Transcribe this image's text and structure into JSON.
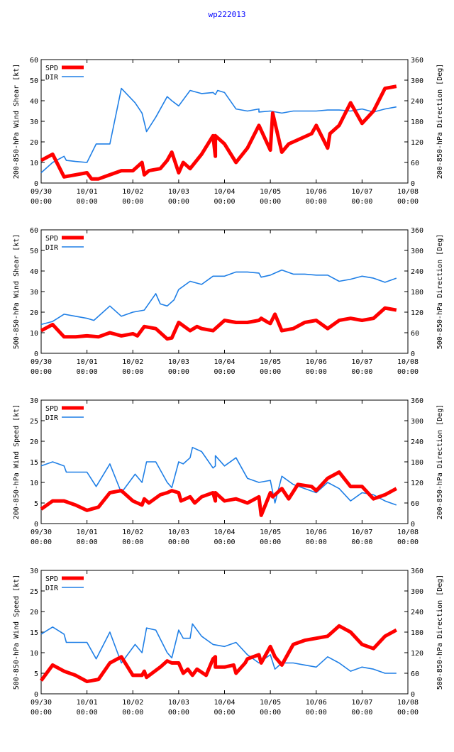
{
  "title": "wp222013",
  "colors": {
    "spd": "#ff0000",
    "dir": "#1f7fe6",
    "title": "#0000ff"
  },
  "x_ticks": [
    {
      "day": 0,
      "date": "09/30",
      "time": "00:00"
    },
    {
      "day": 1,
      "date": "10/01",
      "time": "00:00"
    },
    {
      "day": 2,
      "date": "10/02",
      "time": "00:00"
    },
    {
      "day": 3,
      "date": "10/03",
      "time": "00:00"
    },
    {
      "day": 4,
      "date": "10/04",
      "time": "00:00"
    },
    {
      "day": 5,
      "date": "10/05",
      "time": "00:00"
    },
    {
      "day": 6,
      "date": "10/06",
      "time": "00:00"
    },
    {
      "day": 7,
      "date": "10/07",
      "time": "00:00"
    },
    {
      "day": 8,
      "date": "10/08",
      "time": "00:00"
    }
  ],
  "chart_data": [
    {
      "type": "line",
      "ylabel": "200-850-hPa Wind Shear [kt]",
      "y2label": "200-850-hPa Direction [Deg]",
      "ylim": [
        0,
        60
      ],
      "yticks": [
        0,
        10,
        20,
        30,
        40,
        50,
        60
      ],
      "y2lim": [
        0,
        360
      ],
      "y2ticks": [
        0,
        60,
        120,
        180,
        240,
        300,
        360
      ],
      "xlim": [
        0,
        8
      ],
      "legend": [
        "SPD",
        "DIR"
      ],
      "series": [
        {
          "name": "SPD",
          "axis": "left",
          "x": [
            0,
            0.25,
            0.5,
            0.75,
            1.0,
            1.1,
            1.25,
            1.5,
            1.75,
            2.0,
            2.2,
            2.25,
            2.35,
            2.6,
            2.75,
            2.85,
            3.0,
            3.1,
            3.25,
            3.5,
            3.75,
            3.8,
            3.8,
            4.0,
            4.25,
            4.5,
            4.75,
            5.0,
            5.05,
            5.25,
            5.4,
            5.6,
            5.9,
            6.0,
            6.25,
            6.3,
            6.5,
            6.75,
            7.0,
            7.25,
            7.5,
            7.75
          ],
          "values": [
            11,
            14,
            3,
            4,
            5,
            2,
            2,
            4,
            6,
            6,
            10,
            4,
            6,
            7,
            11,
            15,
            5,
            10,
            7,
            14,
            23,
            13,
            23,
            19,
            10,
            17,
            28,
            16,
            34,
            15,
            19,
            21,
            24,
            28,
            17,
            24,
            28,
            39,
            29,
            35,
            46,
            47
          ]
        },
        {
          "name": "DIR",
          "axis": "right",
          "x": [
            0,
            0.25,
            0.5,
            0.55,
            0.75,
            1.0,
            1.2,
            1.5,
            1.75,
            2.05,
            2.2,
            2.3,
            2.5,
            2.75,
            2.85,
            3.0,
            3.25,
            3.5,
            3.75,
            3.8,
            3.85,
            4.0,
            4.25,
            4.5,
            4.75,
            4.75,
            5.0,
            5.25,
            5.5,
            5.75,
            6.0,
            6.25,
            6.5,
            6.75,
            7.0,
            7.25,
            7.5,
            7.75
          ],
          "values": [
            30,
            60,
            78,
            66,
            63,
            60,
            114,
            114,
            276,
            234,
            204,
            150,
            192,
            252,
            240,
            225,
            270,
            261,
            264,
            258,
            270,
            264,
            216,
            210,
            216,
            207,
            210,
            204,
            210,
            210,
            210,
            213,
            213,
            210,
            216,
            207,
            216,
            222
          ]
        }
      ]
    },
    {
      "type": "line",
      "ylabel": "500-850-hPa Wind Shear [kt]",
      "y2label": "500-850-hPa Direction [Deg]",
      "ylim": [
        0,
        60
      ],
      "yticks": [
        0,
        10,
        20,
        30,
        40,
        50,
        60
      ],
      "y2lim": [
        0,
        360
      ],
      "y2ticks": [
        0,
        60,
        120,
        180,
        240,
        300,
        360
      ],
      "xlim": [
        0,
        8
      ],
      "legend": [
        "SPD",
        "DIR"
      ],
      "series": [
        {
          "name": "SPD",
          "axis": "left",
          "x": [
            0,
            0.25,
            0.5,
            0.75,
            1.0,
            1.25,
            1.5,
            1.75,
            2.0,
            2.1,
            2.25,
            2.5,
            2.75,
            2.85,
            3.0,
            3.25,
            3.4,
            3.5,
            3.75,
            4.0,
            4.25,
            4.5,
            4.75,
            4.8,
            4.95,
            5.0,
            5.1,
            5.25,
            5.5,
            5.75,
            6.0,
            6.25,
            6.5,
            6.75,
            7.0,
            7.25,
            7.5,
            7.75
          ],
          "values": [
            11,
            14,
            8,
            8,
            8.5,
            8,
            10,
            8.5,
            9.5,
            8.5,
            13,
            12,
            7,
            7.5,
            15,
            11,
            13,
            12,
            11,
            16,
            15,
            15,
            16,
            17,
            15,
            14.5,
            19,
            11,
            12,
            15,
            16,
            12,
            16,
            17,
            16,
            17,
            22,
            21
          ]
        },
        {
          "name": "DIR",
          "axis": "right",
          "x": [
            0,
            0.25,
            0.5,
            0.75,
            1.0,
            1.15,
            1.5,
            1.75,
            2.0,
            2.25,
            2.5,
            2.6,
            2.75,
            2.9,
            3.0,
            3.25,
            3.5,
            3.75,
            4.0,
            4.25,
            4.5,
            4.75,
            4.8,
            5.0,
            5.1,
            5.25,
            5.5,
            5.75,
            6.0,
            6.25,
            6.5,
            6.75,
            7.0,
            7.25,
            7.5,
            7.75
          ],
          "values": [
            84,
            93,
            114,
            108,
            102,
            96,
            138,
            108,
            120,
            126,
            174,
            144,
            138,
            156,
            186,
            210,
            201,
            225,
            225,
            237,
            237,
            234,
            222,
            228,
            234,
            243,
            231,
            231,
            228,
            228,
            210,
            216,
            225,
            219,
            207,
            219
          ]
        }
      ]
    },
    {
      "type": "line",
      "ylabel": "200-850-hPa Wind Speed [kt]",
      "y2label": "200-850-hPa Direction [Deg]",
      "ylim": [
        0,
        30
      ],
      "yticks": [
        0,
        5,
        10,
        15,
        20,
        25,
        30
      ],
      "y2lim": [
        0,
        360
      ],
      "y2ticks": [
        0,
        60,
        120,
        180,
        240,
        300,
        360
      ],
      "xlim": [
        0,
        8
      ],
      "legend": [
        "SPD",
        "DIR"
      ],
      "series": [
        {
          "name": "SPD",
          "axis": "left",
          "x": [
            0,
            0.25,
            0.5,
            0.75,
            1.0,
            1.25,
            1.5,
            1.75,
            2.0,
            2.2,
            2.25,
            2.35,
            2.6,
            2.75,
            2.85,
            3.0,
            3.05,
            3.25,
            3.35,
            3.5,
            3.75,
            3.8,
            3.8,
            4.0,
            4.25,
            4.5,
            4.75,
            4.8,
            5.0,
            5.05,
            5.25,
            5.4,
            5.6,
            5.9,
            6.0,
            6.25,
            6.5,
            6.75,
            7.0,
            7.25,
            7.5,
            7.75
          ],
          "values": [
            3.5,
            5.5,
            5.5,
            4.5,
            3.2,
            4,
            7.5,
            8,
            5.5,
            4.5,
            6,
            5,
            7,
            7.5,
            8,
            7.5,
            5.5,
            6.5,
            5,
            6.5,
            7.5,
            5.5,
            7.5,
            5.5,
            6,
            5,
            6.5,
            2,
            7.5,
            6.5,
            8.5,
            6,
            9.5,
            9,
            8,
            11,
            12.5,
            9,
            9,
            6,
            7,
            8.5
          ]
        },
        {
          "name": "DIR",
          "axis": "right",
          "x": [
            0,
            0.25,
            0.5,
            0.55,
            0.75,
            1.0,
            1.2,
            1.5,
            1.75,
            2.05,
            2.2,
            2.3,
            2.5,
            2.75,
            2.85,
            3.0,
            3.1,
            3.25,
            3.3,
            3.5,
            3.75,
            3.8,
            3.8,
            4.0,
            4.25,
            4.5,
            4.75,
            5.0,
            5.1,
            5.25,
            5.5,
            5.75,
            6.0,
            6.25,
            6.5,
            6.75,
            7.0,
            7.25,
            7.5,
            7.75
          ],
          "values": [
            168,
            180,
            168,
            150,
            150,
            150,
            108,
            174,
            90,
            144,
            120,
            180,
            180,
            120,
            105,
            180,
            174,
            192,
            222,
            210,
            162,
            168,
            198,
            168,
            192,
            132,
            120,
            126,
            60,
            138,
            114,
            102,
            90,
            120,
            102,
            66,
            90,
            84,
            66,
            54
          ]
        }
      ]
    },
    {
      "type": "line",
      "ylabel": "500-850-hPa Wind Speed [kt]",
      "y2label": "500-850-hPa Direction [Deg]",
      "ylim": [
        0,
        30
      ],
      "yticks": [
        0,
        5,
        10,
        15,
        20,
        25,
        30
      ],
      "y2lim": [
        0,
        360
      ],
      "y2ticks": [
        0,
        60,
        120,
        180,
        240,
        300,
        360
      ],
      "xlim": [
        0,
        8
      ],
      "legend": [
        "SPD",
        "DIR"
      ],
      "series": [
        {
          "name": "SPD",
          "axis": "left",
          "x": [
            0,
            0.25,
            0.5,
            0.75,
            1.0,
            1.25,
            1.5,
            1.75,
            2.0,
            2.2,
            2.25,
            2.3,
            2.6,
            2.75,
            2.85,
            3.0,
            3.1,
            3.2,
            3.3,
            3.4,
            3.6,
            3.75,
            3.8,
            3.8,
            4.0,
            4.2,
            4.25,
            4.45,
            4.5,
            4.75,
            4.8,
            5.0,
            5.1,
            5.25,
            5.5,
            5.75,
            6.0,
            6.25,
            6.5,
            6.75,
            7.0,
            7.25,
            7.5,
            7.75
          ],
          "values": [
            3.2,
            7,
            5.5,
            4.5,
            3,
            3.5,
            7.5,
            9,
            4.5,
            4.5,
            5.5,
            4,
            6.5,
            8,
            7.5,
            7.5,
            5,
            6,
            4.5,
            6,
            4.5,
            8.5,
            9,
            6.5,
            6.5,
            7,
            5,
            7.5,
            8.5,
            9.5,
            7.5,
            11.5,
            9,
            7,
            12,
            13,
            13.5,
            14,
            16.5,
            15,
            12,
            11,
            14,
            15.5
          ]
        },
        {
          "name": "DIR",
          "axis": "right",
          "x": [
            0,
            0.25,
            0.5,
            0.55,
            0.75,
            1.0,
            1.2,
            1.5,
            1.75,
            2.05,
            2.2,
            2.3,
            2.5,
            2.75,
            2.85,
            3.0,
            3.1,
            3.25,
            3.3,
            3.5,
            3.75,
            4.0,
            4.25,
            4.5,
            4.75,
            5.0,
            5.1,
            5.25,
            5.5,
            5.75,
            6.0,
            6.25,
            6.5,
            6.75,
            7.0,
            7.25,
            7.5,
            7.75
          ],
          "values": [
            174,
            195,
            174,
            150,
            150,
            150,
            102,
            180,
            90,
            144,
            120,
            192,
            186,
            120,
            105,
            186,
            162,
            162,
            204,
            168,
            144,
            138,
            150,
            114,
            90,
            114,
            72,
            90,
            90,
            84,
            78,
            108,
            90,
            66,
            78,
            72,
            60,
            60
          ]
        }
      ]
    }
  ]
}
